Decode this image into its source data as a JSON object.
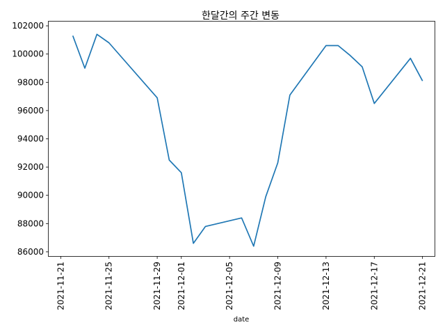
{
  "chart_data": {
    "type": "line",
    "title": "한달간의 주간 변동",
    "xlabel": "date",
    "ylabel": "",
    "grid": false,
    "legend": "none",
    "line_color": "#1f77b4",
    "ylim": [
      85700,
      102300
    ],
    "xlim": [
      "2021-11-20",
      "2021-12-22"
    ],
    "y_ticks": [
      86000,
      88000,
      90000,
      92000,
      94000,
      96000,
      98000,
      100000,
      102000
    ],
    "x_ticks": [
      "2021-11-21",
      "2021-11-25",
      "2021-11-29",
      "2021-12-01",
      "2021-12-05",
      "2021-12-09",
      "2021-12-13",
      "2021-12-17",
      "2021-12-21"
    ],
    "series": [
      {
        "x": [
          "2021-11-22",
          "2021-11-23",
          "2021-11-24",
          "2021-11-25",
          "2021-11-29",
          "2021-11-30",
          "2021-12-01",
          "2021-12-02",
          "2021-12-03",
          "2021-12-06",
          "2021-12-07",
          "2021-12-08",
          "2021-12-09",
          "2021-12-10",
          "2021-12-13",
          "2021-12-14",
          "2021-12-15",
          "2021-12-16",
          "2021-12-17",
          "2021-12-20",
          "2021-12-21"
        ],
        "values": [
          101300,
          99000,
          101400,
          100800,
          96900,
          92500,
          91600,
          86600,
          87800,
          88400,
          86400,
          89900,
          92300,
          97100,
          100600,
          100600,
          99900,
          99100,
          96500,
          99700,
          98100
        ]
      }
    ]
  }
}
